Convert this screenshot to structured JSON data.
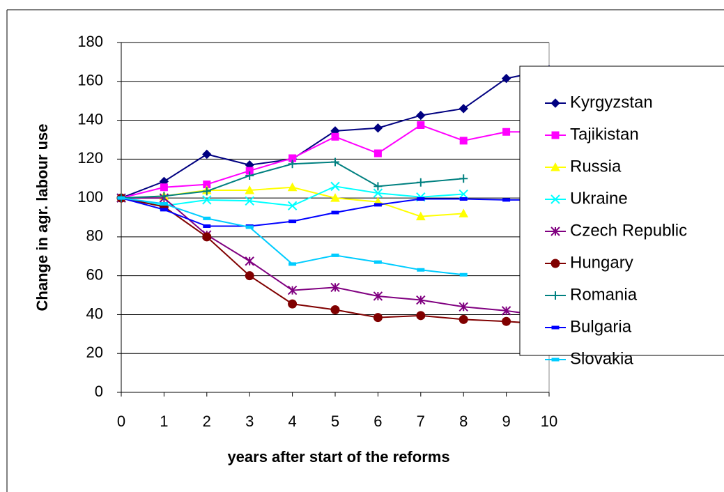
{
  "chart_data": {
    "type": "line",
    "x_label": "years after start of the reforms",
    "y_label": "Change in agr. labour use",
    "x": [
      0,
      1,
      2,
      3,
      4,
      5,
      6,
      7,
      8,
      9,
      10
    ],
    "xlim": [
      0,
      10
    ],
    "xticks": [
      0,
      1,
      2,
      3,
      4,
      5,
      6,
      7,
      8,
      9,
      10
    ],
    "ylim": [
      0,
      180
    ],
    "yticks": [
      0,
      20,
      40,
      60,
      80,
      100,
      120,
      140,
      160,
      180
    ],
    "grid": true,
    "legend": "right",
    "series": [
      {
        "name": "Kyrgyzstan",
        "color": "#000080",
        "marker": "diamond",
        "values": [
          100,
          108.5,
          122.5,
          117,
          120,
          134.5,
          136,
          142.5,
          146,
          161.5,
          166
        ]
      },
      {
        "name": "Tajikistan",
        "color": "#ff00ff",
        "marker": "square",
        "values": [
          100,
          105.5,
          107,
          114,
          120.5,
          131.5,
          123,
          137.5,
          129.5,
          134,
          134
        ]
      },
      {
        "name": "Russia",
        "color": "#ffff00",
        "marker": "triangle",
        "values": [
          100,
          101,
          104,
          104,
          105.5,
          100,
          98,
          90.5,
          92,
          null,
          null
        ]
      },
      {
        "name": "Ukraine",
        "color": "#00ffff",
        "marker": "x",
        "values": [
          100,
          96,
          99,
          98.5,
          96,
          106,
          102.5,
          100.5,
          102,
          null,
          null
        ]
      },
      {
        "name": "Czech Republic",
        "color": "#800080",
        "marker": "asterisk",
        "values": [
          100,
          100,
          81,
          67.5,
          52.5,
          54,
          49.5,
          47.5,
          44,
          42,
          39
        ]
      },
      {
        "name": "Hungary",
        "color": "#800000",
        "marker": "circle",
        "values": [
          100,
          95.5,
          80,
          60,
          45.5,
          42.5,
          38.5,
          39.5,
          37.5,
          36.5,
          35
        ]
      },
      {
        "name": "Romania",
        "color": "#008080",
        "marker": "plus",
        "values": [
          100,
          101,
          103.5,
          111.5,
          117.5,
          118.5,
          106,
          108,
          110,
          null,
          null
        ]
      },
      {
        "name": "Bulgaria",
        "color": "#0000ff",
        "marker": "dash",
        "values": [
          100,
          94,
          85.5,
          85.5,
          88,
          92.5,
          96.5,
          99.5,
          99.5,
          99,
          99
        ]
      },
      {
        "name": "Slovakia",
        "color": "#00ccff",
        "marker": "dash",
        "values": [
          100,
          97,
          89.5,
          85,
          66,
          70.5,
          67,
          63,
          60.5,
          null,
          null
        ]
      }
    ]
  }
}
